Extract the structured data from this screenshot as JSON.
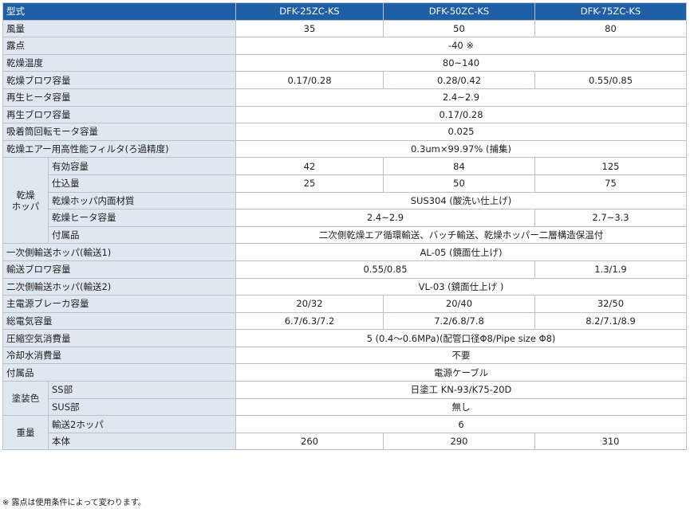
{
  "table": {
    "header": [
      "型式",
      "DFK-25ZC-KS",
      "DFK-50ZC-KS",
      "DFK-75ZC-KS"
    ],
    "rows": [
      {
        "label": "風量",
        "cells": [
          "35",
          "50",
          "80"
        ]
      },
      {
        "label": "露点",
        "cells": [
          "-40 ※"
        ]
      },
      {
        "label": "乾燥温度",
        "cells": [
          "80~140"
        ]
      },
      {
        "label": "乾燥ブロワ容量",
        "cells": [
          "0.17/0.28",
          "0.28/0.42",
          "0.55/0.85"
        ]
      },
      {
        "label": "再生ヒータ容量",
        "cells": [
          "2.4~2.9"
        ]
      },
      {
        "label": "再生ブロワ容量",
        "cells": [
          "0.17/0.28"
        ]
      },
      {
        "label": "吸着筒回転モータ容量",
        "cells": [
          "0.025"
        ]
      },
      {
        "label": "乾燥エアー用高性能フィルタ(ろ過精度)",
        "cells": [
          "0.3um×99.97% (捕集)"
        ]
      },
      {
        "group": "乾燥\nホッパ",
        "rows": [
          {
            "label": "有効容量",
            "cells": [
              "42",
              "84",
              "125"
            ]
          },
          {
            "label": "仕込量",
            "cells": [
              "25",
              "50",
              "75"
            ]
          },
          {
            "label": "乾燥ホッパ内面材質",
            "cells": [
              "SUS304 (酸洗い仕上げ)"
            ]
          },
          {
            "label": "乾燥ヒータ容量",
            "cells": [
              "2.4~2.9",
              "2.7~3.3"
            ]
          },
          {
            "label": "付属品",
            "cells": [
              "二次側乾燥エア循環輸送、バッチ輸送、乾燥ホッパー二層構造保温付"
            ]
          }
        ]
      },
      {
        "label": "一次側輸送ホッパ(輸送1)",
        "cells": [
          "AL-05 (鏡面仕上げ)"
        ]
      },
      {
        "label": "輸送ブロワ容量",
        "cells": [
          "0.55/0.85",
          "1.3/1.9"
        ]
      },
      {
        "label": "二次側輸送ホッパ(輸送2)",
        "cells": [
          "VL-03 (鏡面仕上げ )"
        ]
      },
      {
        "label": "主電源ブレーカ容量",
        "cells": [
          "20/32",
          "20/40",
          "32/50"
        ]
      },
      {
        "label": "総電気容量",
        "cells": [
          "6.7/6.3/7.2",
          "7.2/6.8/7.8",
          "8.2/7.1/8.9"
        ]
      },
      {
        "label": "圧縮空気消費量",
        "cells": [
          "5 (0.4～0.6MPa)(配管口径Φ8/Pipe size Φ8)"
        ]
      },
      {
        "label": "冷却水消費量",
        "cells": [
          "不要"
        ]
      },
      {
        "label": "付属品",
        "cells": [
          "電源ケーブル"
        ]
      },
      {
        "group": "塗装色",
        "rows": [
          {
            "label": "SS部",
            "cells": [
              "日塗工 KN-93/K75-20D"
            ]
          },
          {
            "label": "SUS部",
            "cells": [
              "無し"
            ]
          }
        ]
      },
      {
        "group": "重量",
        "rows": [
          {
            "label": "輸送2ホッパ",
            "cells": [
              "6"
            ]
          },
          {
            "label": "本体",
            "cells": [
              "260",
              "290",
              "310"
            ]
          }
        ]
      }
    ]
  },
  "footnote": "※ 露点は使用条件によって変わります。"
}
